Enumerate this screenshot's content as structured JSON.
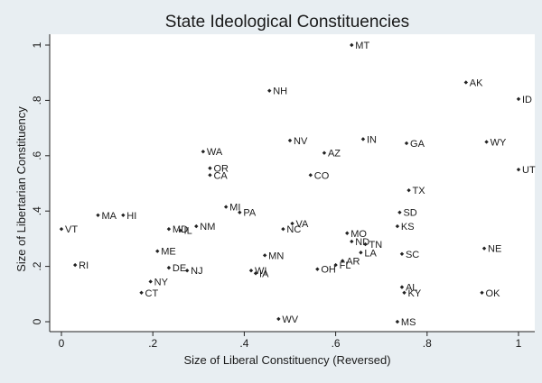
{
  "chart_data": {
    "type": "scatter",
    "title": "State Ideological Constituencies",
    "xlabel": "Size of Liberal Constituency (Reversed)",
    "ylabel": "Size of Libertarian Constituency",
    "xlim": [
      0,
      1
    ],
    "ylim": [
      0,
      1
    ],
    "x_ticks": [
      0,
      0.2,
      0.4,
      0.6,
      0.8,
      1
    ],
    "x_tick_labels": [
      "0",
      ".2",
      ".4",
      ".6",
      ".8",
      "1"
    ],
    "y_ticks": [
      0,
      0.2,
      0.4,
      0.6,
      0.8,
      1
    ],
    "y_tick_labels": [
      "0",
      ".2",
      ".4",
      ".6",
      ".8",
      "1"
    ],
    "grid": false,
    "marker_color": "#222222",
    "points": [
      {
        "label": "MT",
        "x": 0.635,
        "y": 1.0
      },
      {
        "label": "AK",
        "x": 0.885,
        "y": 0.865
      },
      {
        "label": "ID",
        "x": 1.0,
        "y": 0.805
      },
      {
        "label": "NH",
        "x": 0.455,
        "y": 0.835
      },
      {
        "label": "NV",
        "x": 0.5,
        "y": 0.655
      },
      {
        "label": "IN",
        "x": 0.66,
        "y": 0.66
      },
      {
        "label": "GA",
        "x": 0.755,
        "y": 0.645
      },
      {
        "label": "WY",
        "x": 0.93,
        "y": 0.65
      },
      {
        "label": "WA",
        "x": 0.31,
        "y": 0.615
      },
      {
        "label": "AZ",
        "x": 0.575,
        "y": 0.61
      },
      {
        "label": "OR",
        "x": 0.325,
        "y": 0.555
      },
      {
        "label": "UT",
        "x": 1.0,
        "y": 0.55
      },
      {
        "label": "CA",
        "x": 0.325,
        "y": 0.53
      },
      {
        "label": "CO",
        "x": 0.545,
        "y": 0.53
      },
      {
        "label": "TX",
        "x": 0.76,
        "y": 0.475
      },
      {
        "label": "MI",
        "x": 0.36,
        "y": 0.415
      },
      {
        "label": "PA",
        "x": 0.39,
        "y": 0.395
      },
      {
        "label": "SD",
        "x": 0.74,
        "y": 0.395
      },
      {
        "label": "MA",
        "x": 0.08,
        "y": 0.385
      },
      {
        "label": "HI",
        "x": 0.135,
        "y": 0.385
      },
      {
        "label": "VA",
        "x": 0.505,
        "y": 0.355
      },
      {
        "label": "NM",
        "x": 0.295,
        "y": 0.345
      },
      {
        "label": "KS",
        "x": 0.735,
        "y": 0.345
      },
      {
        "label": "VT",
        "x": 0.0,
        "y": 0.335
      },
      {
        "label": "MD",
        "x": 0.235,
        "y": 0.335
      },
      {
        "label": "IL",
        "x": 0.26,
        "y": 0.33
      },
      {
        "label": "NC",
        "x": 0.485,
        "y": 0.335
      },
      {
        "label": "MO",
        "x": 0.625,
        "y": 0.32
      },
      {
        "label": "ND",
        "x": 0.635,
        "y": 0.29
      },
      {
        "label": "TN",
        "x": 0.665,
        "y": 0.28
      },
      {
        "label": "NE",
        "x": 0.925,
        "y": 0.265
      },
      {
        "label": "ME",
        "x": 0.21,
        "y": 0.255
      },
      {
        "label": "LA",
        "x": 0.655,
        "y": 0.25
      },
      {
        "label": "SC",
        "x": 0.745,
        "y": 0.245
      },
      {
        "label": "MN",
        "x": 0.445,
        "y": 0.24
      },
      {
        "label": "AR",
        "x": 0.615,
        "y": 0.22
      },
      {
        "label": "FL",
        "x": 0.6,
        "y": 0.205
      },
      {
        "label": "RI",
        "x": 0.03,
        "y": 0.205
      },
      {
        "label": "DE",
        "x": 0.235,
        "y": 0.195
      },
      {
        "label": "NJ",
        "x": 0.275,
        "y": 0.185
      },
      {
        "label": "WI",
        "x": 0.415,
        "y": 0.185
      },
      {
        "label": "OH",
        "x": 0.56,
        "y": 0.19
      },
      {
        "label": "IA",
        "x": 0.425,
        "y": 0.175
      },
      {
        "label": "NY",
        "x": 0.195,
        "y": 0.145
      },
      {
        "label": "AL",
        "x": 0.745,
        "y": 0.125
      },
      {
        "label": "CT",
        "x": 0.175,
        "y": 0.105
      },
      {
        "label": "KY",
        "x": 0.75,
        "y": 0.105
      },
      {
        "label": "OK",
        "x": 0.92,
        "y": 0.105
      },
      {
        "label": "WV",
        "x": 0.475,
        "y": 0.01
      },
      {
        "label": "MS",
        "x": 0.735,
        "y": 0.0
      }
    ]
  }
}
